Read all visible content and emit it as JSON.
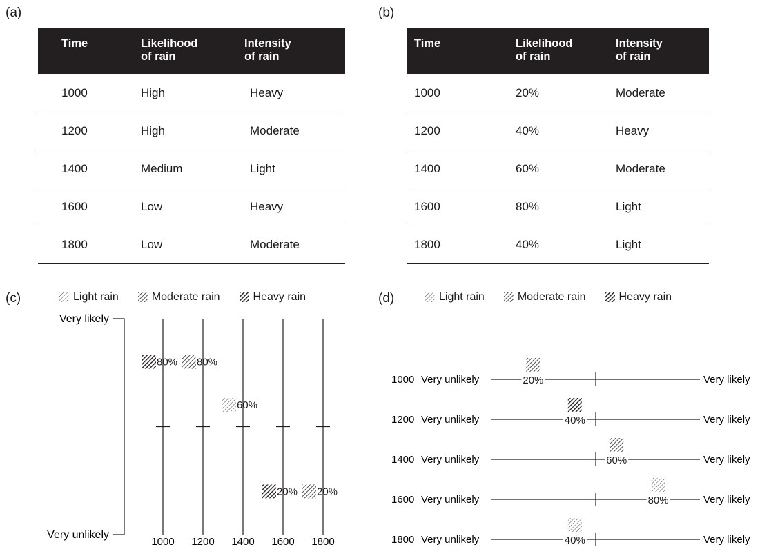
{
  "panels": {
    "a": {
      "label": "(a)",
      "headers": [
        "Time",
        "Likelihood of rain",
        "Intensity of rain"
      ],
      "rows": [
        [
          "1000",
          "High",
          "Heavy"
        ],
        [
          "1200",
          "High",
          "Moderate"
        ],
        [
          "1400",
          "Medium",
          "Light"
        ],
        [
          "1600",
          "Low",
          "Heavy"
        ],
        [
          "1800",
          "Low",
          "Moderate"
        ]
      ]
    },
    "b": {
      "label": "(b)",
      "headers": [
        "Time",
        "Likelihood of rain",
        "Intensity of rain"
      ],
      "rows": [
        [
          "1000",
          "20%",
          "Moderate"
        ],
        [
          "1200",
          "40%",
          "Heavy"
        ],
        [
          "1400",
          "60%",
          "Moderate"
        ],
        [
          "1600",
          "80%",
          "Light"
        ],
        [
          "1800",
          "40%",
          "Light"
        ]
      ]
    },
    "c": {
      "label": "(c)",
      "legend": [
        "Light rain",
        "Moderate rain",
        "Heavy rain"
      ],
      "top_label": "Very likely",
      "bottom_label": "Very unlikely",
      "points": [
        {
          "time": "1000",
          "percent": 80,
          "label": "80%",
          "intensity": "heavy"
        },
        {
          "time": "1200",
          "percent": 80,
          "label": "80%",
          "intensity": "moderate"
        },
        {
          "time": "1400",
          "percent": 60,
          "label": "60%",
          "intensity": "light"
        },
        {
          "time": "1600",
          "percent": 20,
          "label": "20%",
          "intensity": "heavy"
        },
        {
          "time": "1800",
          "percent": 20,
          "label": "20%",
          "intensity": "moderate"
        }
      ]
    },
    "d": {
      "label": "(d)",
      "legend": [
        "Light rain",
        "Moderate rain",
        "Heavy rain"
      ],
      "left_label": "Very unlikely",
      "right_label": "Very likely",
      "points": [
        {
          "time": "1000",
          "percent": 20,
          "label": "20%",
          "intensity": "moderate"
        },
        {
          "time": "1200",
          "percent": 40,
          "label": "40%",
          "intensity": "heavy"
        },
        {
          "time": "1400",
          "percent": 60,
          "label": "60%",
          "intensity": "moderate"
        },
        {
          "time": "1600",
          "percent": 80,
          "label": "80%",
          "intensity": "light"
        },
        {
          "time": "1800",
          "percent": 40,
          "label": "40%",
          "intensity": "light"
        }
      ]
    }
  },
  "colors": {
    "header_bg": "#231f20",
    "ink": "#231f20"
  }
}
